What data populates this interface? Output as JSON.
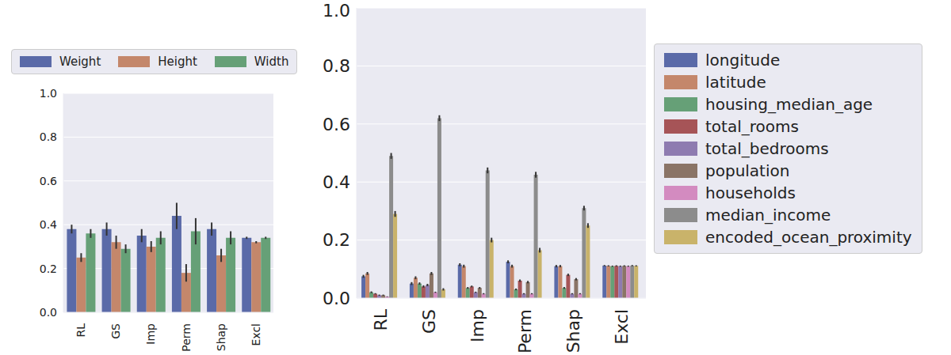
{
  "chart_data": [
    {
      "type": "bar",
      "categories": [
        "RL",
        "GS",
        "Imp",
        "Perm",
        "Shap",
        "Excl"
      ],
      "ylim": [
        0,
        1
      ],
      "yticks": [
        {
          "value": 0,
          "label": "0.0"
        },
        0.2,
        0.4,
        0.6,
        0.8,
        {
          "value": 1,
          "label": "1.0"
        }
      ],
      "grid": true,
      "legend": "top",
      "series": [
        {
          "name": "Weight",
          "color": "#5a6aa8",
          "values": [
            0.38,
            0.38,
            0.35,
            0.44,
            0.38,
            0.34
          ],
          "errors": [
            0.02,
            0.03,
            0.03,
            0.06,
            0.03,
            0.005
          ]
        },
        {
          "name": "Height",
          "color": "#c4876b",
          "values": [
            0.25,
            0.32,
            0.3,
            0.18,
            0.26,
            0.32
          ],
          "errors": [
            0.02,
            0.03,
            0.025,
            0.04,
            0.03,
            0.005
          ]
        },
        {
          "name": "Width",
          "color": "#66a077",
          "values": [
            0.36,
            0.29,
            0.34,
            0.37,
            0.34,
            0.34
          ],
          "errors": [
            0.02,
            0.02,
            0.03,
            0.06,
            0.03,
            0.005
          ]
        }
      ]
    },
    {
      "type": "bar",
      "categories": [
        "RL",
        "GS",
        "Imp",
        "Perm",
        "Shap",
        "Excl"
      ],
      "ylim": [
        0,
        1
      ],
      "yticks": [
        {
          "value": 0,
          "label": "0.0"
        },
        0.2,
        0.4,
        0.6,
        0.8,
        {
          "value": 1,
          "label": "1.0"
        }
      ],
      "grid": true,
      "legend": "right",
      "series": [
        {
          "name": "longitude",
          "color": "#5a6aa8",
          "values": [
            0.075,
            0.05,
            0.115,
            0.125,
            0.11,
            0.112
          ],
          "errors": [
            0.005,
            0.005,
            0.005,
            0.005,
            0.004,
            0.002
          ]
        },
        {
          "name": "latitude",
          "color": "#c4876b",
          "values": [
            0.085,
            0.07,
            0.11,
            0.11,
            0.11,
            0.111
          ],
          "errors": [
            0.005,
            0.005,
            0.005,
            0.005,
            0.004,
            0.002
          ]
        },
        {
          "name": "housing_median_age",
          "color": "#66a077",
          "values": [
            0.02,
            0.05,
            0.035,
            0.03,
            0.035,
            0.11
          ],
          "errors": [
            0.003,
            0.004,
            0.003,
            0.003,
            0.003,
            0.002
          ]
        },
        {
          "name": "total_rooms",
          "color": "#a65457",
          "values": [
            0.015,
            0.04,
            0.04,
            0.06,
            0.08,
            0.111
          ],
          "errors": [
            0.002,
            0.004,
            0.003,
            0.004,
            0.004,
            0.002
          ]
        },
        {
          "name": "total_bedrooms",
          "color": "#8e7bb0",
          "values": [
            0.01,
            0.045,
            0.02,
            0.015,
            0.015,
            0.11
          ],
          "errors": [
            0.002,
            0.004,
            0.002,
            0.002,
            0.002,
            0.002
          ]
        },
        {
          "name": "population",
          "color": "#8a7466",
          "values": [
            0.01,
            0.085,
            0.035,
            0.055,
            0.065,
            0.111
          ],
          "errors": [
            0.002,
            0.005,
            0.003,
            0.004,
            0.004,
            0.002
          ]
        },
        {
          "name": "households",
          "color": "#d38bc0",
          "values": [
            0.005,
            0.02,
            0.015,
            0.015,
            0.015,
            0.11
          ],
          "errors": [
            0.001,
            0.002,
            0.002,
            0.002,
            0.002,
            0.002
          ]
        },
        {
          "name": "median_income",
          "color": "#8c8c8c",
          "values": [
            0.49,
            0.62,
            0.44,
            0.425,
            0.31,
            0.112
          ],
          "errors": [
            0.01,
            0.01,
            0.01,
            0.01,
            0.008,
            0.002
          ]
        },
        {
          "name": "encoded_ocean_proximity",
          "color": "#c9b36a",
          "values": [
            0.29,
            0.03,
            0.2,
            0.165,
            0.25,
            0.111
          ],
          "errors": [
            0.01,
            0.004,
            0.008,
            0.008,
            0.008,
            0.002
          ]
        }
      ]
    }
  ]
}
